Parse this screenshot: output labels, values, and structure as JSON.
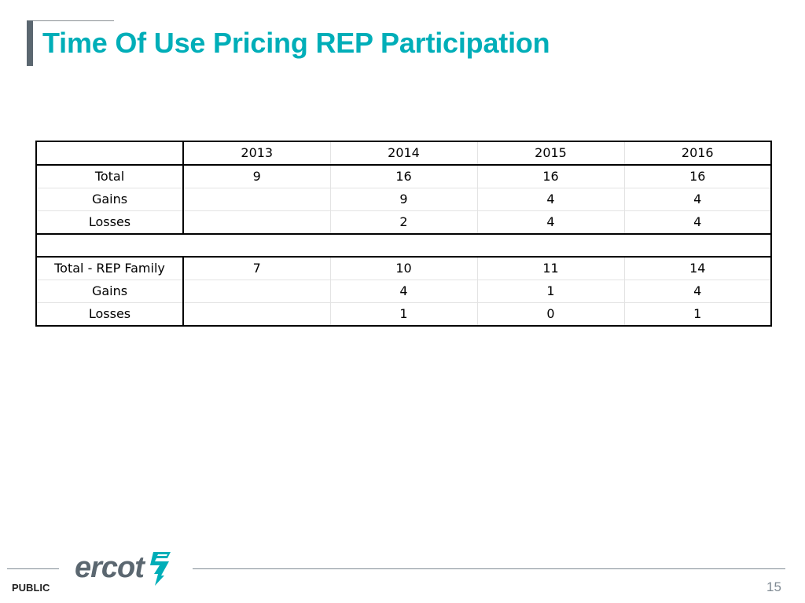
{
  "slide": {
    "title": "Time Of Use Pricing REP Participation",
    "page_number": "15",
    "classification": "PUBLIC",
    "logo": "ercot"
  },
  "colors": {
    "title": "#00aeb8",
    "title_accent_bar": "#5b6770",
    "logo": "#5b6770",
    "logo_mark": "#00aeb8"
  },
  "table": {
    "header": [
      "",
      "2013",
      "2014",
      "2015",
      "2016"
    ],
    "section1": [
      [
        "Total",
        "9",
        "16",
        "16",
        "16"
      ],
      [
        "Gains",
        "",
        "9",
        "4",
        "4"
      ],
      [
        "Losses",
        "",
        "2",
        "4",
        "4"
      ]
    ],
    "section2": [
      [
        "Total - REP Family",
        "7",
        "10",
        "11",
        "14"
      ],
      [
        "Gains",
        "",
        "4",
        "1",
        "4"
      ],
      [
        "Losses",
        "",
        "1",
        "0",
        "1"
      ]
    ]
  }
}
